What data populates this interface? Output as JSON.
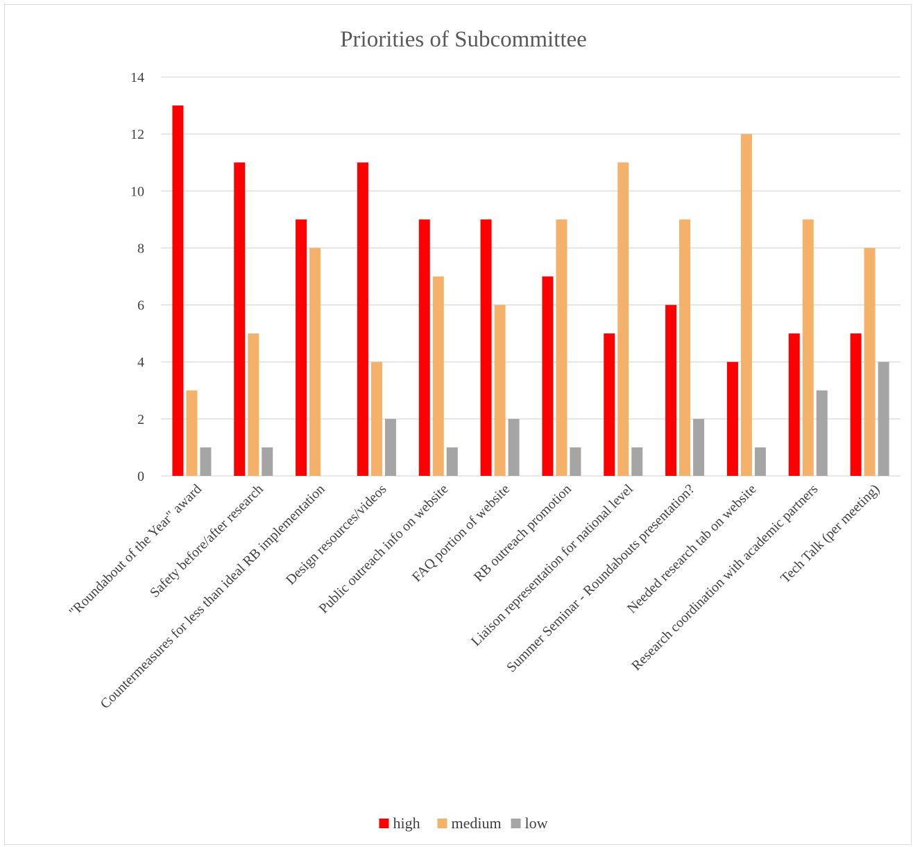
{
  "chart_data": {
    "type": "bar",
    "title": "Priorities of Subcommittee",
    "xlabel": "",
    "ylabel": "",
    "ylim": [
      0,
      14
    ],
    "yticks": [
      0,
      2,
      4,
      6,
      8,
      10,
      12,
      14
    ],
    "grid": true,
    "legend_position": "bottom",
    "categories": [
      "\"Roundabout of the Year\" award",
      "Safety before/after research",
      "Countermeasures for less than ideal RB implementation",
      "Design resources/videos",
      "Public outreach info on website",
      "FAQ portion of website",
      "RB outreach promotion",
      "Liaison representation for national level",
      "Summer Seminar - Roundabouts presentation?",
      "Needed research tab on website",
      "Research coordination with academic partners",
      "Tech Talk (per meeting)"
    ],
    "series": [
      {
        "name": "high",
        "color": "#ff0000",
        "values": [
          13,
          11,
          9,
          11,
          9,
          9,
          7,
          5,
          6,
          4,
          5,
          5
        ]
      },
      {
        "name": "medium",
        "color": "#f4b16a",
        "values": [
          3,
          5,
          8,
          4,
          7,
          6,
          9,
          11,
          9,
          12,
          9,
          8
        ]
      },
      {
        "name": "low",
        "color": "#a5a5a5",
        "values": [
          1,
          1,
          0,
          2,
          1,
          2,
          1,
          1,
          2,
          1,
          3,
          4
        ]
      }
    ]
  }
}
